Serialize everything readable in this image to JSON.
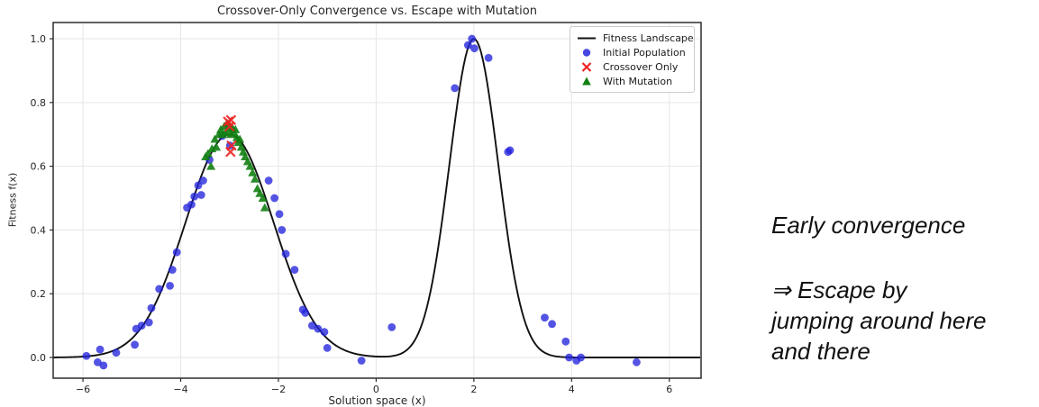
{
  "chart_data": {
    "type": "line+scatter",
    "title": "Crossover-Only Convergence vs. Escape with Mutation",
    "xlabel": "Solution space (x)",
    "ylabel": "Fitness f(x)",
    "xlim": [
      -6.61,
      6.65
    ],
    "ylim": [
      -0.065,
      1.051
    ],
    "xticks": [
      -6,
      -4,
      -2,
      0,
      2,
      4,
      6
    ],
    "xtick_labels": [
      "−6",
      "−4",
      "−2",
      "0",
      "2",
      "4",
      "6"
    ],
    "yticks": [
      0,
      0.2,
      0.4,
      0.6,
      0.8,
      1.0
    ],
    "ytick_labels": [
      "0.0",
      "0.2",
      "0.4",
      "0.6",
      "0.8",
      "1.0"
    ],
    "grid": true,
    "colors": {
      "curve": "#111111",
      "initial_population": "#2424dd",
      "crossover_only": "#ee2222",
      "with_mutation": "#128012",
      "grid": "#e6e6e6",
      "spine": "#2b2b2b",
      "tick_text": "#262626"
    },
    "landscape": {
      "name": "Fitness Landscape",
      "formula": "f(x) = 0.7·exp(-(x+3)²/(2·0.9²)) + 1.0·exp(-(x-2)²/(2·0.5²))",
      "gaussians": [
        {
          "amplitude": 0.7,
          "mean": -3,
          "sigma": 0.9
        },
        {
          "amplitude": 1.0,
          "mean": 2,
          "sigma": 0.5
        }
      ]
    },
    "legend": {
      "position": "upper right",
      "entries": [
        {
          "label": "Fitness Landscape",
          "marker": "line",
          "color": "#111111"
        },
        {
          "label": "Initial Population",
          "marker": "circle",
          "color": "#2424dd"
        },
        {
          "label": "Crossover Only",
          "marker": "x",
          "color": "#ee2222"
        },
        {
          "label": "With Mutation",
          "marker": "triangle",
          "color": "#128012"
        }
      ]
    },
    "series": [
      {
        "name": "Initial Population",
        "marker": "circle",
        "color": "#2424dd",
        "opacity": 0.78,
        "points": [
          [
            -5.93,
            0.005
          ],
          [
            -5.7,
            -0.015
          ],
          [
            -5.65,
            0.025
          ],
          [
            -5.58,
            -0.025
          ],
          [
            -5.32,
            0.015
          ],
          [
            -4.94,
            0.04
          ],
          [
            -4.91,
            0.09
          ],
          [
            -4.8,
            0.1
          ],
          [
            -4.65,
            0.11
          ],
          [
            -4.6,
            0.155
          ],
          [
            -4.44,
            0.215
          ],
          [
            -4.22,
            0.225
          ],
          [
            -4.17,
            0.275
          ],
          [
            -4.08,
            0.33
          ],
          [
            -3.87,
            0.47
          ],
          [
            -3.78,
            0.48
          ],
          [
            -3.72,
            0.505
          ],
          [
            -3.64,
            0.54
          ],
          [
            -3.58,
            0.51
          ],
          [
            -3.54,
            0.555
          ],
          [
            -3.41,
            0.62
          ],
          [
            -3.15,
            0.695
          ],
          [
            -2.99,
            0.665
          ],
          [
            -2.2,
            0.555
          ],
          [
            -2.08,
            0.5
          ],
          [
            -1.98,
            0.45
          ],
          [
            -1.93,
            0.4
          ],
          [
            -1.85,
            0.325
          ],
          [
            -1.67,
            0.275
          ],
          [
            -1.5,
            0.15
          ],
          [
            -1.45,
            0.14
          ],
          [
            -1.31,
            0.1
          ],
          [
            -1.19,
            0.09
          ],
          [
            -1.06,
            0.08
          ],
          [
            -1.0,
            0.03
          ],
          [
            -0.3,
            -0.01
          ],
          [
            0.32,
            0.095
          ],
          [
            1.61,
            0.845
          ],
          [
            1.88,
            0.98
          ],
          [
            1.96,
            1.0
          ],
          [
            2.01,
            0.97
          ],
          [
            2.3,
            0.94
          ],
          [
            2.7,
            0.645
          ],
          [
            2.74,
            0.65
          ],
          [
            3.45,
            0.125
          ],
          [
            3.6,
            0.105
          ],
          [
            3.88,
            0.05
          ],
          [
            3.95,
            0.0
          ],
          [
            4.1,
            -0.01
          ],
          [
            4.19,
            0.0
          ],
          [
            5.33,
            -0.015
          ]
        ]
      },
      {
        "name": "With Mutation",
        "marker": "triangle",
        "color": "#128012",
        "opacity": 0.9,
        "points": [
          [
            -3.49,
            0.63
          ],
          [
            -3.44,
            0.64
          ],
          [
            -3.38,
            0.6
          ],
          [
            -3.36,
            0.655
          ],
          [
            -3.3,
            0.685
          ],
          [
            -3.27,
            0.66
          ],
          [
            -3.22,
            0.7
          ],
          [
            -3.18,
            0.715
          ],
          [
            -3.14,
            0.7
          ],
          [
            -3.11,
            0.725
          ],
          [
            -3.08,
            0.705
          ],
          [
            -3.05,
            0.735
          ],
          [
            -3.02,
            0.715
          ],
          [
            -3.0,
            0.73
          ],
          [
            -2.97,
            0.7
          ],
          [
            -2.94,
            0.72
          ],
          [
            -2.91,
            0.705
          ],
          [
            -2.88,
            0.715
          ],
          [
            -2.85,
            0.69
          ],
          [
            -2.82,
            0.675
          ],
          [
            -2.79,
            0.685
          ],
          [
            -2.76,
            0.66
          ],
          [
            -2.72,
            0.645
          ],
          [
            -2.68,
            0.63
          ],
          [
            -2.63,
            0.615
          ],
          [
            -2.58,
            0.6
          ],
          [
            -2.53,
            0.58
          ],
          [
            -2.48,
            0.56
          ],
          [
            -2.43,
            0.53
          ],
          [
            -2.38,
            0.515
          ],
          [
            -2.32,
            0.5
          ],
          [
            -2.28,
            0.47
          ]
        ]
      },
      {
        "name": "Crossover Only",
        "marker": "x",
        "color": "#ee2222",
        "opacity": 0.9,
        "points": [
          [
            -3.03,
            0.74
          ],
          [
            -2.97,
            0.745
          ],
          [
            -3.0,
            0.725
          ],
          [
            -2.96,
            0.665
          ],
          [
            -2.98,
            0.645
          ]
        ]
      }
    ]
  },
  "annotation": {
    "lines": {
      "l1": "Early convergence",
      "l2": "⇒ Escape by",
      "l3": "jumping around here",
      "l4": "and there"
    }
  }
}
